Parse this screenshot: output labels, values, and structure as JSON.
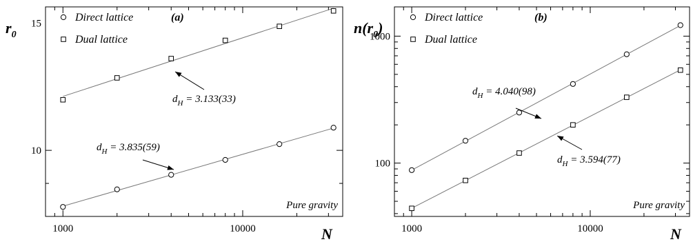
{
  "chart_data": [
    {
      "type": "scatter",
      "panel_label": "(a)",
      "xlabel": "N",
      "ylabel": "r",
      "ylabel_sub": "0",
      "xscale": "log",
      "yscale": "log",
      "xlim": [
        800,
        36000
      ],
      "ylim": [
        8.1,
        15.8
      ],
      "xticks": [
        1000,
        10000
      ],
      "xtick_labels": [
        "1000",
        "10000"
      ],
      "yticks": [
        10,
        15
      ],
      "ytick_labels": [
        "10",
        "15"
      ],
      "legend_position": "top-left",
      "note": "Pure gravity",
      "series": [
        {
          "name": "Direct lattice",
          "marker": "circle",
          "x": [
            1000,
            2000,
            4000,
            8000,
            16000,
            32000
          ],
          "y": [
            8.35,
            8.83,
            9.25,
            9.7,
            10.2,
            10.75
          ],
          "fit_label": "d",
          "fit_label_sub": "H",
          "fit_label_rest": " = 3.835(59)"
        },
        {
          "name": "Dual lattice",
          "marker": "square",
          "x": [
            1000,
            2000,
            4000,
            8000,
            16000,
            32000
          ],
          "y": [
            11.75,
            12.6,
            13.4,
            14.2,
            14.85,
            15.6
          ],
          "fit_label": "d",
          "fit_label_sub": "H",
          "fit_label_rest": " = 3.133(33)"
        }
      ]
    },
    {
      "type": "scatter",
      "panel_label": "(b)",
      "xlabel": "N",
      "ylabel": "n(r",
      "ylabel_sub": "0",
      "ylabel_close": ")",
      "xscale": "log",
      "yscale": "log",
      "xlim": [
        800,
        36000
      ],
      "ylim": [
        38,
        1700
      ],
      "xticks": [
        1000,
        10000
      ],
      "xtick_labels": [
        "1000",
        "10000"
      ],
      "yticks": [
        100,
        1000
      ],
      "ytick_labels": [
        "100",
        "1000"
      ],
      "legend_position": "top-left",
      "note": "Pure gravity",
      "series": [
        {
          "name": "Direct lattice",
          "marker": "circle",
          "x": [
            1000,
            2000,
            4000,
            8000,
            16000,
            32000
          ],
          "y": [
            88,
            150,
            250,
            420,
            720,
            1220
          ],
          "fit_label": "d",
          "fit_label_sub": "H",
          "fit_label_rest": " = 4.040(98)"
        },
        {
          "name": "Dual lattice",
          "marker": "square",
          "x": [
            1000,
            2000,
            4000,
            8000,
            16000,
            32000
          ],
          "y": [
            44,
            73,
            120,
            200,
            330,
            540
          ],
          "fit_label": "d",
          "fit_label_sub": "H",
          "fit_label_rest": " = 3.594(77)"
        }
      ]
    }
  ]
}
